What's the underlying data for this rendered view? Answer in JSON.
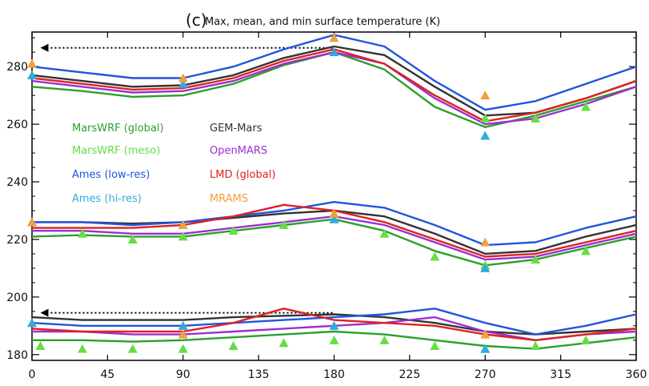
{
  "chart_data": {
    "type": "line",
    "title_panel": "(c)",
    "title": "Max, mean, and min surface temperature (K)",
    "xlabel": "",
    "ylabel": "",
    "xlim": [
      0,
      360
    ],
    "ylim": [
      178,
      292
    ],
    "xticks": [
      0,
      45,
      90,
      135,
      180,
      225,
      270,
      315,
      360
    ],
    "yticks": [
      180,
      200,
      220,
      240,
      260,
      280
    ],
    "grid": false,
    "legend_position": "middle-left",
    "reference_lines": [
      {
        "y": 286.5,
        "x_from": 5,
        "x_to": 180,
        "style": "dotted-arrow",
        "color": "#000000"
      },
      {
        "y": 194.5,
        "x_from": 5,
        "x_to": 180,
        "style": "dotted-arrow",
        "color": "#000000"
      }
    ],
    "legend": [
      {
        "label": "MarsWRF (global)",
        "color": "#2ca02c"
      },
      {
        "label": "GEM-Mars",
        "color": "#333333"
      },
      {
        "label": "MarsWRF (meso)",
        "color": "#66dd44"
      },
      {
        "label": "OpenMARS",
        "color": "#9b30d0"
      },
      {
        "label": "Ames (low-res)",
        "color": "#2255dd"
      },
      {
        "label": "LMD (global)",
        "color": "#dd2222"
      },
      {
        "label": "Ames (hi-res)",
        "color": "#33aadd"
      },
      {
        "label": "MRAMS",
        "color": "#f0a040"
      }
    ],
    "series": [
      {
        "name": "MarsWRF (global)",
        "group": "max",
        "color": "#2ca02c",
        "style": "line",
        "x": [
          0,
          30,
          60,
          90,
          120,
          150,
          180,
          210,
          240,
          270,
          300,
          330,
          360
        ],
        "y": [
          273,
          271.5,
          269.5,
          270,
          274,
          280.5,
          285,
          279,
          266,
          259,
          263,
          268,
          273
        ]
      },
      {
        "name": "GEM-Mars",
        "group": "max",
        "color": "#333333",
        "style": "line",
        "x": [
          0,
          30,
          60,
          90,
          120,
          150,
          180,
          210,
          240,
          270,
          300,
          330,
          360
        ],
        "y": [
          277,
          275,
          273,
          273.5,
          277,
          283,
          287,
          284,
          273,
          263,
          264,
          269,
          275
        ]
      },
      {
        "name": "OpenMARS",
        "group": "max",
        "color": "#9b30d0",
        "style": "line",
        "x": [
          0,
          30,
          60,
          90,
          120,
          150,
          180,
          210,
          240,
          270,
          300,
          330,
          360
        ],
        "y": [
          275,
          273,
          271,
          271.5,
          275,
          281,
          285,
          281,
          269,
          260,
          262,
          267,
          273
        ]
      },
      {
        "name": "Ames (low-res)",
        "group": "max",
        "color": "#2255dd",
        "style": "line",
        "x": [
          0,
          30,
          60,
          90,
          120,
          150,
          180,
          210,
          240,
          270,
          300,
          330,
          360
        ],
        "y": [
          280,
          278,
          276,
          276,
          280,
          286,
          291,
          287,
          275,
          265,
          268,
          274,
          280
        ]
      },
      {
        "name": "LMD (global)",
        "group": "max",
        "color": "#dd2222",
        "style": "line",
        "x": [
          0,
          30,
          60,
          90,
          120,
          150,
          180,
          210,
          240,
          270,
          300,
          330,
          360
        ],
        "y": [
          276,
          274,
          272,
          272.5,
          276,
          282,
          286,
          281,
          270,
          261,
          264,
          269,
          275
        ]
      },
      {
        "name": "MarsWRF (global)",
        "group": "mean",
        "color": "#2ca02c",
        "style": "line",
        "x": [
          0,
          30,
          60,
          90,
          120,
          150,
          180,
          210,
          240,
          270,
          300,
          330,
          360
        ],
        "y": [
          221,
          221.5,
          221,
          221,
          223,
          225,
          227,
          223,
          216,
          211,
          213,
          217,
          221
        ]
      },
      {
        "name": "GEM-Mars",
        "group": "mean",
        "color": "#333333",
        "style": "line",
        "x": [
          0,
          30,
          60,
          90,
          120,
          150,
          180,
          210,
          240,
          270,
          300,
          330,
          360
        ],
        "y": [
          226,
          226,
          225.5,
          226,
          227.5,
          229,
          230,
          228,
          222,
          215,
          216,
          221,
          225
        ]
      },
      {
        "name": "OpenMARS",
        "group": "mean",
        "color": "#9b30d0",
        "style": "line",
        "x": [
          0,
          30,
          60,
          90,
          120,
          150,
          180,
          210,
          240,
          270,
          300,
          330,
          360
        ],
        "y": [
          223,
          223,
          222,
          222,
          224,
          226,
          228,
          225,
          219,
          213,
          214,
          218,
          222
        ]
      },
      {
        "name": "Ames (low-res)",
        "group": "mean",
        "color": "#2255dd",
        "style": "line",
        "x": [
          0,
          30,
          60,
          90,
          120,
          150,
          180,
          210,
          240,
          270,
          300,
          330,
          360
        ],
        "y": [
          226,
          226,
          225,
          226,
          228,
          230,
          233,
          231,
          225,
          218,
          219,
          224,
          228
        ]
      },
      {
        "name": "LMD (global)",
        "group": "mean",
        "color": "#dd2222",
        "style": "line",
        "x": [
          0,
          30,
          60,
          90,
          120,
          150,
          180,
          210,
          240,
          270,
          300,
          330,
          360
        ],
        "y": [
          224,
          224,
          224,
          225,
          228,
          232,
          230,
          226,
          220,
          214,
          215,
          219,
          223
        ]
      },
      {
        "name": "MarsWRF (global)",
        "group": "min",
        "color": "#2ca02c",
        "style": "line",
        "x": [
          0,
          30,
          60,
          90,
          120,
          150,
          180,
          210,
          240,
          270,
          300,
          330,
          360
        ],
        "y": [
          185,
          185,
          184.5,
          185,
          186,
          187,
          188,
          187,
          185,
          183,
          182,
          184,
          186
        ]
      },
      {
        "name": "GEM-Mars",
        "group": "min",
        "color": "#333333",
        "style": "line",
        "x": [
          0,
          30,
          60,
          90,
          120,
          150,
          180,
          210,
          240,
          270,
          300,
          330,
          360
        ],
        "y": [
          193,
          192,
          192,
          192,
          193,
          193.5,
          194,
          193,
          191,
          188,
          187,
          188,
          189
        ]
      },
      {
        "name": "OpenMARS",
        "group": "min",
        "color": "#9b30d0",
        "style": "line",
        "x": [
          0,
          30,
          60,
          90,
          120,
          150,
          180,
          210,
          240,
          270,
          300,
          330,
          360
        ],
        "y": [
          188,
          188,
          187,
          187,
          188,
          189,
          190,
          191,
          193,
          188,
          185,
          187,
          188
        ]
      },
      {
        "name": "Ames (low-res)",
        "group": "min",
        "color": "#2255dd",
        "style": "line",
        "x": [
          0,
          30,
          60,
          90,
          120,
          150,
          180,
          210,
          240,
          270,
          300,
          330,
          360
        ],
        "y": [
          191,
          190,
          190,
          190,
          191,
          192,
          193,
          194,
          196,
          191,
          187,
          190,
          194
        ]
      },
      {
        "name": "LMD (global)",
        "group": "min",
        "color": "#dd2222",
        "style": "line",
        "x": [
          0,
          30,
          60,
          90,
          120,
          150,
          180,
          210,
          240,
          270,
          300,
          330,
          360
        ],
        "y": [
          189,
          188,
          188,
          188,
          191,
          196,
          192,
          191,
          190,
          187,
          185,
          187,
          189
        ]
      },
      {
        "name": "MarsWRF (meso)",
        "group": "max",
        "color": "#66dd44",
        "style": "markers",
        "x": [
          270,
          300,
          330
        ],
        "y": [
          262,
          262,
          266
        ]
      },
      {
        "name": "MarsWRF (meso)",
        "group": "mean",
        "color": "#66dd44",
        "style": "markers",
        "x": [
          30,
          60,
          90,
          120,
          150,
          180,
          210,
          240,
          270,
          300,
          330
        ],
        "y": [
          222,
          220,
          221,
          223,
          225,
          227,
          222,
          214,
          211,
          213,
          216
        ]
      },
      {
        "name": "MarsWRF (meso)",
        "group": "min",
        "color": "#66dd44",
        "style": "markers",
        "x": [
          5,
          30,
          60,
          90,
          120,
          150,
          180,
          210,
          240,
          270,
          300,
          330
        ],
        "y": [
          183,
          182,
          182,
          182,
          183,
          184,
          185,
          185,
          183,
          182,
          183,
          185
        ]
      },
      {
        "name": "Ames (hi-res)",
        "group": "max",
        "color": "#33aadd",
        "style": "markers",
        "x": [
          0,
          90,
          180,
          270
        ],
        "y": [
          277,
          274,
          285,
          256
        ]
      },
      {
        "name": "Ames (hi-res)",
        "group": "mean",
        "color": "#33aadd",
        "style": "markers",
        "x": [
          0,
          90,
          180,
          270
        ],
        "y": [
          226,
          225,
          227,
          210
        ]
      },
      {
        "name": "Ames (hi-res)",
        "group": "min",
        "color": "#33aadd",
        "style": "markers",
        "x": [
          0,
          90,
          180,
          270
        ],
        "y": [
          191,
          190,
          190,
          182
        ]
      },
      {
        "name": "MRAMS",
        "group": "all",
        "color": "#f0a040",
        "style": "markers",
        "x": [
          0,
          90,
          180,
          270,
          0,
          90,
          180,
          270,
          90,
          270
        ],
        "y": [
          281,
          276,
          290,
          270,
          226,
          225,
          229,
          219,
          187,
          187
        ]
      }
    ]
  }
}
